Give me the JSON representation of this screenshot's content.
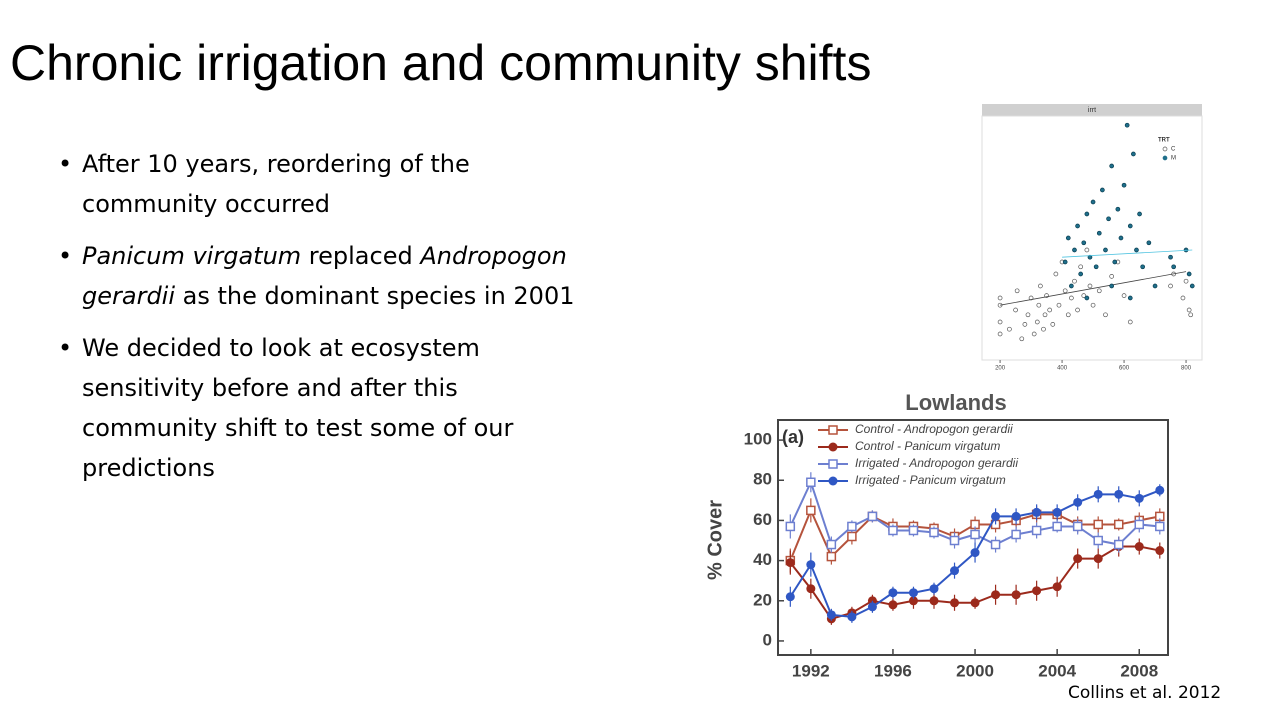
{
  "title": "Chronic irrigation and community shifts",
  "bullets": [
    [
      {
        "text": "After 10 years, reordering of the community occurred"
      }
    ],
    [
      {
        "text": "Panicum virgatum",
        "italic": true
      },
      {
        "text": " replaced "
      },
      {
        "text": "Andropogon gerardii",
        "italic": true
      },
      {
        "text": " as the dominant species in 2001"
      }
    ],
    [
      {
        "text": "We decided to look at ecosystem sensitivity before and after this community shift to test some of our predictions"
      }
    ]
  ],
  "citation": "Collins et al. 2012",
  "chart_data": [
    {
      "type": "scatter",
      "panel_title": "irrt",
      "legend_title": "TRT",
      "xlim": [
        161,
        845
      ],
      "ylim": [
        0,
        100
      ],
      "xticks": [
        200,
        400,
        600,
        800
      ],
      "series": [
        {
          "name": "C",
          "color": "#555555",
          "marker": "open",
          "x": [
            200,
            200,
            200,
            200,
            230,
            250,
            255,
            270,
            280,
            290,
            300,
            310,
            320,
            325,
            330,
            340,
            345,
            350,
            360,
            370,
            380,
            390,
            400,
            410,
            420,
            430,
            440,
            450,
            460,
            470,
            480,
            490,
            500,
            520,
            540,
            560,
            580,
            600,
            620,
            750,
            760,
            790,
            800,
            810,
            815
          ],
          "values": [
            10,
            15,
            22,
            25,
            12,
            20,
            28,
            8,
            14,
            18,
            25,
            10,
            15,
            22,
            30,
            12,
            18,
            26,
            20,
            14,
            35,
            22,
            40,
            28,
            18,
            25,
            32,
            20,
            38,
            26,
            45,
            30,
            22,
            28,
            18,
            34,
            40,
            26,
            15,
            30,
            35,
            25,
            32,
            20,
            18
          ],
          "trend": {
            "x": [
              200,
              800
            ],
            "y": [
              22,
              36
            ]
          }
        },
        {
          "name": "M",
          "color": "#1f6f8b",
          "marker": "filled",
          "x": [
            410,
            420,
            430,
            440,
            450,
            460,
            470,
            480,
            490,
            500,
            510,
            520,
            530,
            540,
            550,
            560,
            570,
            580,
            590,
            600,
            610,
            620,
            630,
            640,
            650,
            660,
            680,
            700,
            750,
            760,
            800,
            810,
            820,
            620,
            560,
            480
          ],
          "values": [
            40,
            50,
            30,
            45,
            55,
            35,
            48,
            60,
            42,
            65,
            38,
            52,
            70,
            45,
            58,
            80,
            40,
            62,
            50,
            72,
            97,
            55,
            85,
            45,
            60,
            38,
            48,
            30,
            42,
            38,
            45,
            35,
            30,
            25,
            30,
            25
          ],
          "trend": {
            "x": [
              400,
              820
            ],
            "y": [
              42,
              45
            ]
          }
        }
      ]
    },
    {
      "type": "line",
      "title": "Lowlands",
      "panel_label": "(a)",
      "y_label": "% Cover",
      "x": [
        1991,
        1992,
        1993,
        1994,
        1995,
        1996,
        1997,
        1998,
        1999,
        2000,
        2001,
        2002,
        2003,
        2004,
        2005,
        2006,
        2007,
        2008,
        2009
      ],
      "xlim": [
        1990.4,
        2009.4
      ],
      "xticks": [
        1992,
        1996,
        2000,
        2004,
        2008
      ],
      "ylim": [
        -7,
        110
      ],
      "yticks": [
        0,
        20,
        40,
        60,
        80,
        100
      ],
      "series": [
        {
          "name": "Control - Andropogon gerardii",
          "color": "#b5533c",
          "marker": "square-open",
          "values": [
            40,
            65,
            42,
            52,
            62,
            57,
            57,
            56,
            52,
            58,
            58,
            60,
            63,
            63,
            58,
            58,
            58,
            60,
            62
          ],
          "errors": [
            6,
            6,
            4,
            4,
            3,
            4,
            3,
            3,
            4,
            4,
            4,
            4,
            4,
            3,
            4,
            4,
            3,
            4,
            4
          ]
        },
        {
          "name": "Control - Panicum virgatum",
          "color": "#9c2a1c",
          "marker": "circle-filled",
          "values": [
            39,
            26,
            11,
            14,
            20,
            18,
            20,
            20,
            19,
            19,
            23,
            23,
            25,
            27,
            41,
            41,
            47,
            47,
            45
          ],
          "errors": [
            6,
            5,
            3,
            3,
            3,
            3,
            4,
            4,
            4,
            3,
            5,
            5,
            5,
            5,
            5,
            5,
            5,
            4,
            4
          ]
        },
        {
          "name": "Irrigated - Andropogon gerardii",
          "color": "#6d7fd0",
          "marker": "square-open",
          "values": [
            57,
            79,
            48,
            57,
            62,
            55,
            55,
            54,
            50,
            53,
            48,
            53,
            55,
            57,
            57,
            50,
            48,
            58,
            57
          ],
          "errors": [
            6,
            5,
            4,
            3,
            3,
            3,
            3,
            3,
            4,
            4,
            4,
            4,
            4,
            3,
            4,
            4,
            4,
            4,
            4
          ]
        },
        {
          "name": "Irrigated - Panicum virgatum",
          "color": "#2f57c4",
          "marker": "circle-filled",
          "values": [
            22,
            38,
            13,
            12,
            17,
            24,
            24,
            26,
            35,
            44,
            62,
            62,
            64,
            64,
            69,
            73,
            73,
            71,
            75
          ],
          "errors": [
            5,
            6,
            3,
            3,
            3,
            3,
            3,
            3,
            4,
            5,
            4,
            4,
            4,
            4,
            4,
            4,
            4,
            4,
            3
          ]
        }
      ]
    }
  ]
}
